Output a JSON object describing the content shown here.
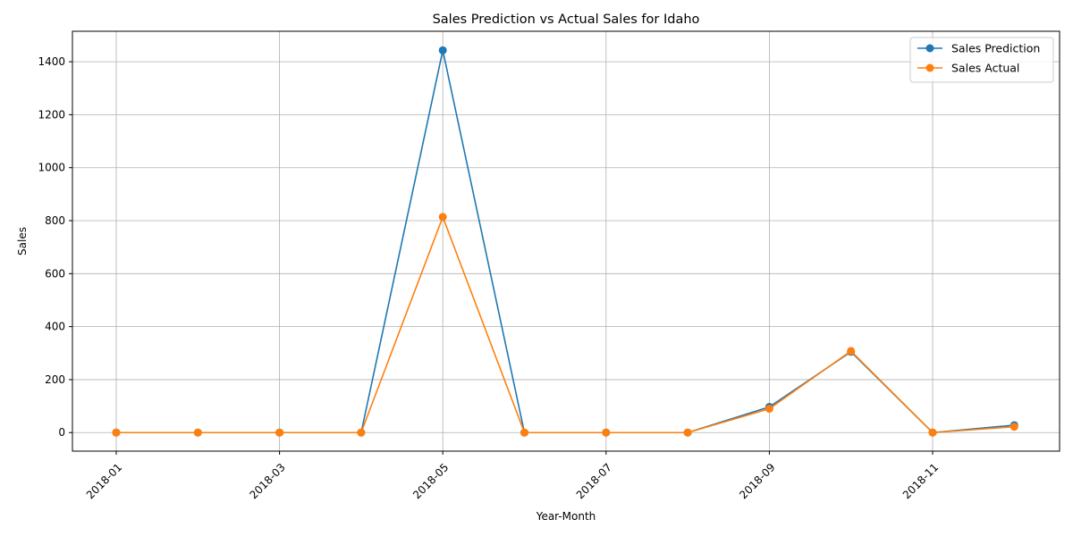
{
  "chart_data": {
    "type": "line",
    "title": "Sales Prediction vs Actual Sales for Idaho",
    "xlabel": "Year-Month",
    "ylabel": "Sales",
    "x": [
      "2018-01",
      "2018-02",
      "2018-03",
      "2018-04",
      "2018-05",
      "2018-06",
      "2018-07",
      "2018-08",
      "2018-09",
      "2018-10",
      "2018-11",
      "2018-12"
    ],
    "xtick_labels": [
      "2018-01",
      "2018-03",
      "2018-05",
      "2018-07",
      "2018-09",
      "2018-11"
    ],
    "ytick_labels": [
      "0",
      "200",
      "400",
      "600",
      "800",
      "1000",
      "1200",
      "1400"
    ],
    "ylim": [
      -70,
      1515
    ],
    "grid": true,
    "legend_position": "top-right",
    "series": [
      {
        "name": "Sales Prediction",
        "color": "#1f77b4",
        "marker": "circle",
        "values": [
          0,
          0,
          0,
          0,
          1443,
          0,
          0,
          0,
          97,
          305,
          0,
          28
        ]
      },
      {
        "name": "Sales Actual",
        "color": "#ff7f0e",
        "marker": "circle",
        "values": [
          0,
          0,
          0,
          0,
          814,
          0,
          0,
          0,
          90,
          308,
          0,
          22
        ]
      }
    ]
  }
}
